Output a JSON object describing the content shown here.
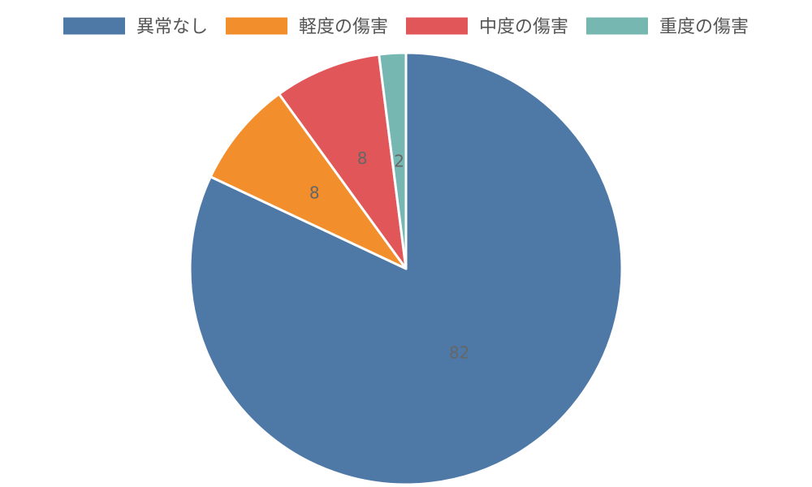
{
  "chart_data": {
    "type": "pie",
    "categories": [
      "異常なし",
      "軽度の傷害",
      "中度の傷害",
      "重度の傷害"
    ],
    "values": [
      82,
      8,
      8,
      2
    ],
    "colors": [
      "#4e79a7",
      "#f28e2b",
      "#e15759",
      "#76b7b2"
    ],
    "legend_position": "top",
    "start_direction": "top",
    "order": "clockwise-from-top-first-slice",
    "data_labels": [
      "82",
      "8",
      "8",
      "2"
    ]
  }
}
